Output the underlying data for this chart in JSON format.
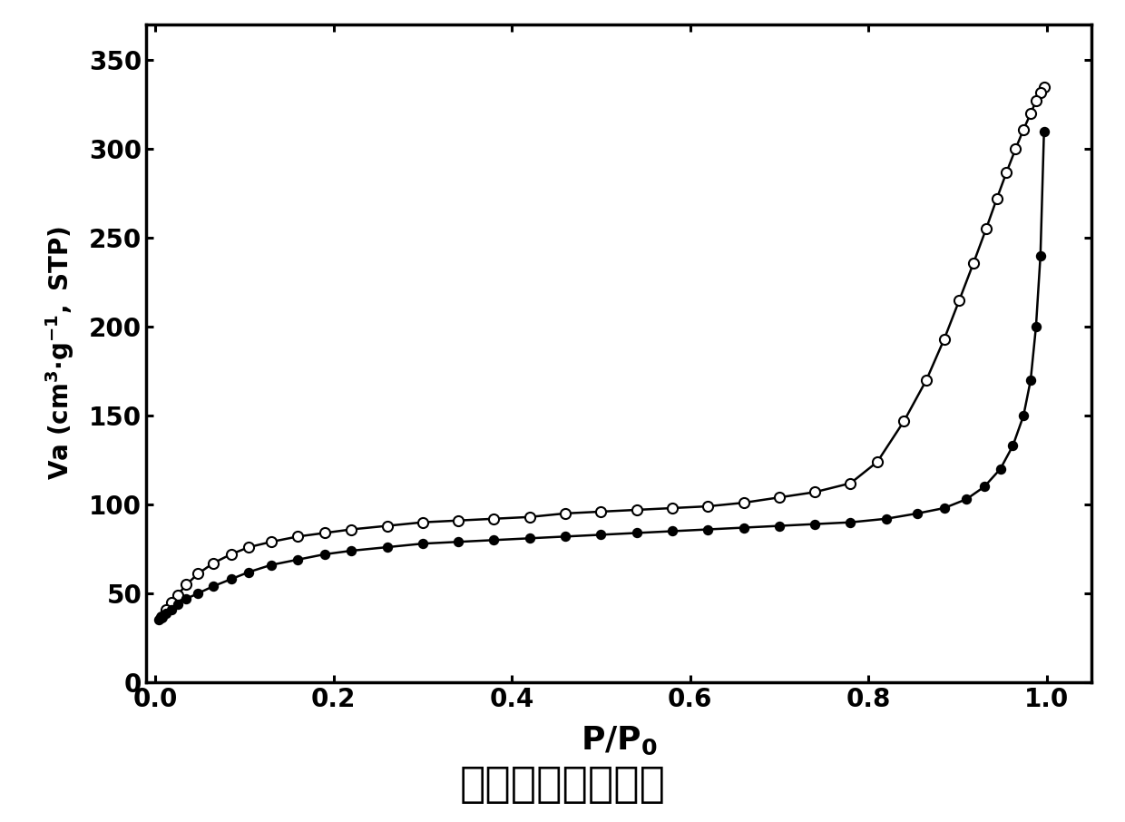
{
  "title": "氮气吸附脱附曲线",
  "xlim": [
    -0.01,
    1.05
  ],
  "ylim": [
    0,
    370
  ],
  "yticks": [
    0,
    50,
    100,
    150,
    200,
    250,
    300,
    350
  ],
  "xticks": [
    0.0,
    0.2,
    0.4,
    0.6,
    0.8,
    1.0
  ],
  "adsorption_x": [
    0.004,
    0.007,
    0.012,
    0.018,
    0.025,
    0.035,
    0.048,
    0.065,
    0.085,
    0.105,
    0.13,
    0.16,
    0.19,
    0.22,
    0.26,
    0.3,
    0.34,
    0.38,
    0.42,
    0.46,
    0.5,
    0.54,
    0.58,
    0.62,
    0.66,
    0.7,
    0.74,
    0.78,
    0.82,
    0.855,
    0.885,
    0.91,
    0.93,
    0.948,
    0.962,
    0.974,
    0.982,
    0.988,
    0.993,
    0.997
  ],
  "adsorption_y": [
    35,
    37,
    39,
    41,
    44,
    47,
    50,
    54,
    58,
    62,
    66,
    69,
    72,
    74,
    76,
    78,
    79,
    80,
    81,
    82,
    83,
    84,
    85,
    86,
    87,
    88,
    89,
    90,
    92,
    95,
    98,
    103,
    110,
    120,
    133,
    150,
    170,
    200,
    240,
    310
  ],
  "desorption_x": [
    0.997,
    0.993,
    0.988,
    0.982,
    0.974,
    0.965,
    0.955,
    0.944,
    0.932,
    0.918,
    0.902,
    0.885,
    0.865,
    0.84,
    0.81,
    0.78,
    0.74,
    0.7,
    0.66,
    0.62,
    0.58,
    0.54,
    0.5,
    0.46,
    0.42,
    0.38,
    0.34,
    0.3,
    0.26,
    0.22,
    0.19,
    0.16,
    0.13,
    0.105,
    0.085,
    0.065,
    0.048,
    0.035,
    0.025,
    0.018,
    0.012,
    0.007
  ],
  "desorption_y": [
    335,
    332,
    327,
    320,
    311,
    300,
    287,
    272,
    255,
    236,
    215,
    193,
    170,
    147,
    124,
    112,
    107,
    104,
    101,
    99,
    98,
    97,
    96,
    95,
    93,
    92,
    91,
    90,
    88,
    86,
    84,
    82,
    79,
    76,
    72,
    67,
    61,
    55,
    49,
    45,
    41,
    37
  ],
  "line_color": "#000000",
  "marker_size_filled": 7,
  "marker_size_open": 8,
  "line_width": 1.8,
  "background_color": "#ffffff"
}
